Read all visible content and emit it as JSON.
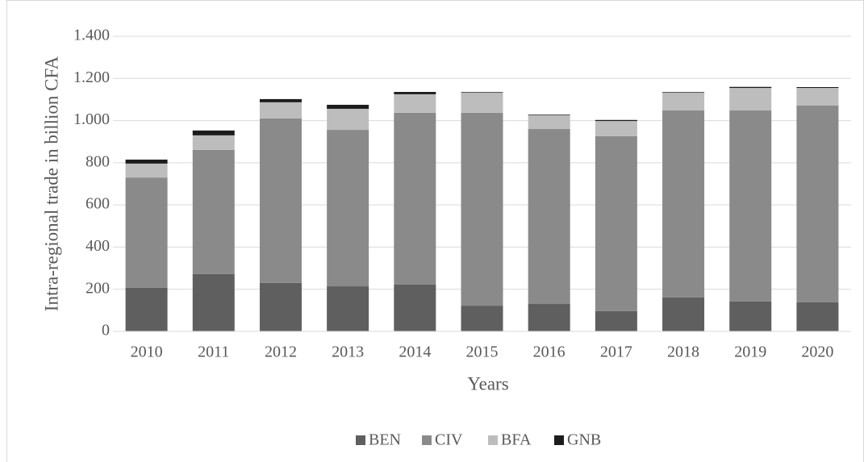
{
  "chart_data": {
    "type": "stacked_bar",
    "y_label": "Intra-regional trade in billion CFA",
    "x_label": "Years",
    "categories": [
      "2010",
      "2011",
      "2012",
      "2013",
      "2014",
      "2015",
      "2016",
      "2017",
      "2018",
      "2019",
      "2020"
    ],
    "series": [
      {
        "name": "BEN",
        "color": "#5f5f5f",
        "values": [
          207,
          272,
          230,
          214,
          222,
          122,
          130,
          96,
          161,
          142,
          138
        ]
      },
      {
        "name": "CIV",
        "color": "#8a8a8a",
        "values": [
          523,
          589,
          780,
          742,
          815,
          915,
          830,
          830,
          887,
          906,
          933
        ]
      },
      {
        "name": "BFA",
        "color": "#bdbdbd",
        "values": [
          66,
          69,
          77,
          100,
          88,
          95,
          65,
          72,
          84,
          107,
          84
        ]
      },
      {
        "name": "GNB",
        "color": "#1c1c1c",
        "values": [
          19,
          23,
          15,
          19,
          11,
          3,
          3,
          5,
          3,
          5,
          4
        ]
      }
    ],
    "ylim": [
      0,
      1400
    ],
    "yticks": [
      0,
      200,
      400,
      600,
      800,
      {
        "value": 1000,
        "label": "1.000"
      },
      {
        "value": 1200,
        "label": "1.200"
      },
      {
        "value": 1400,
        "label": "1.400"
      }
    ],
    "grid": true,
    "legend": "bottom"
  }
}
